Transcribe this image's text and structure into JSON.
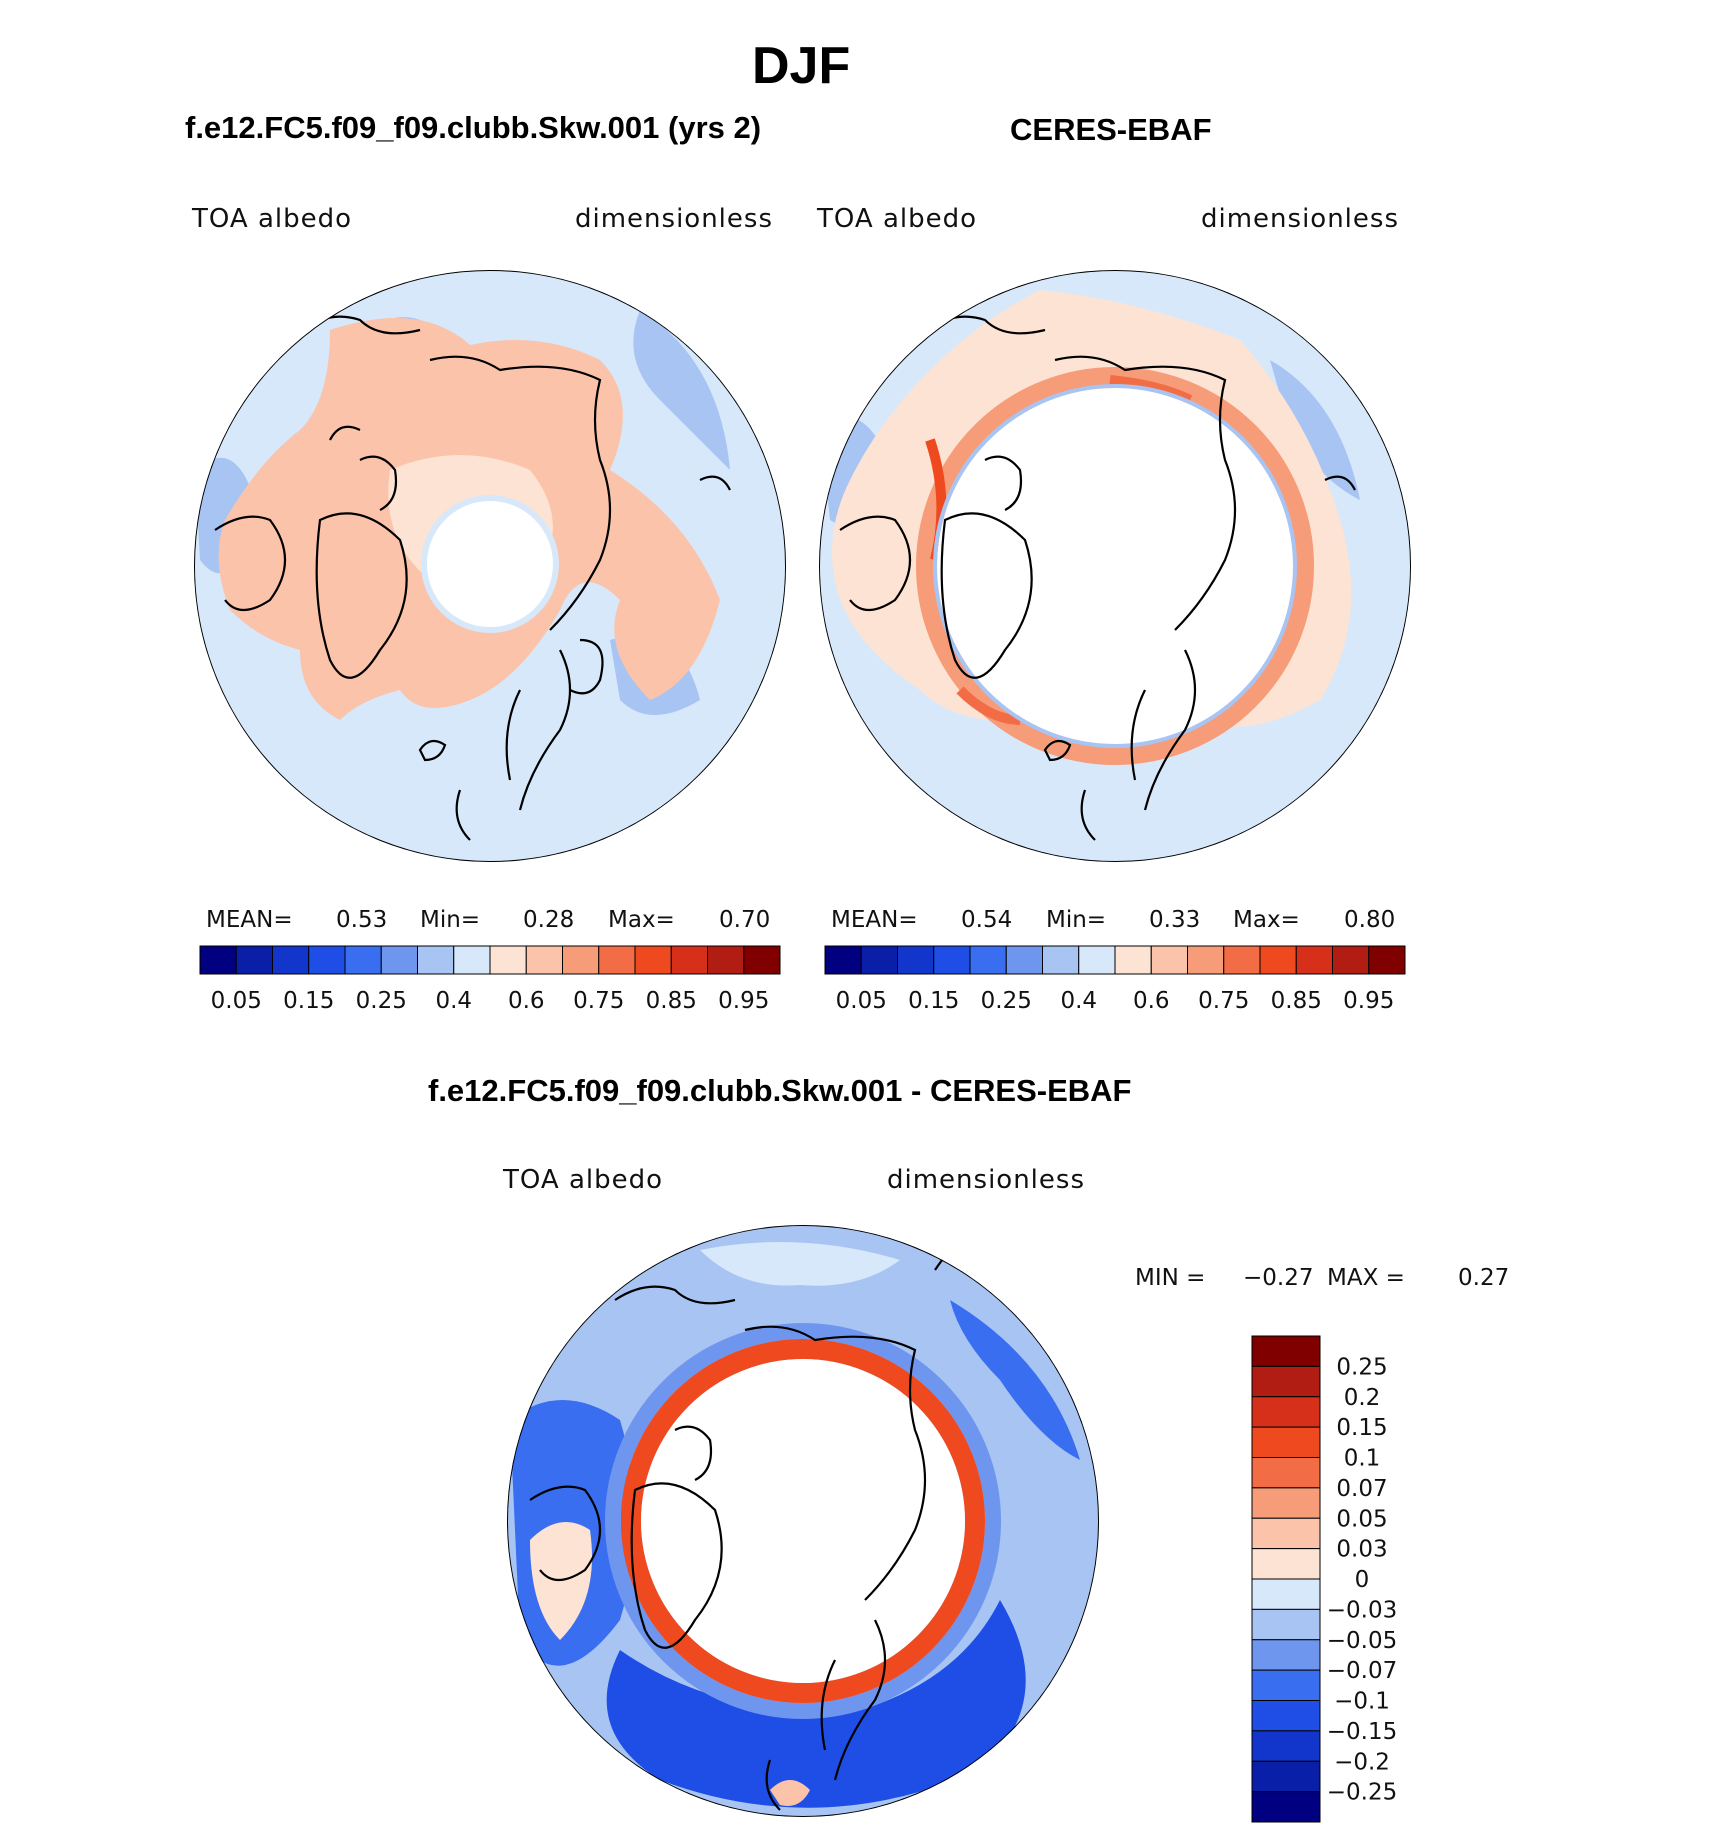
{
  "figure": {
    "season": "DJF",
    "panels": [
      {
        "title": "f.e12.FC5.f09_f09.clubb.Skw.001 (yrs 2)",
        "variable": "TOA albedo",
        "units": "dimensionless",
        "stats": {
          "mean_label": "MEAN=",
          "mean": "0.53",
          "min_label": "Min=",
          "min": "0.28",
          "max_label": "Max=",
          "max": "0.70"
        }
      },
      {
        "title": "CERES-EBAF",
        "variable": "TOA albedo",
        "units": "dimensionless",
        "stats": {
          "mean_label": "MEAN=",
          "mean": "0.54",
          "min_label": "Min=",
          "min": "0.33",
          "max_label": "Max=",
          "max": "0.80"
        }
      }
    ],
    "diff": {
      "title": "f.e12.FC5.f09_f09.clubb.Skw.001 - CERES-EBAF",
      "variable": "TOA albedo",
      "units": "dimensionless",
      "min_label": "MIN =",
      "min": "−0.27",
      "max_label": "MAX =",
      "max": "0.27"
    }
  },
  "colorbars": {
    "field": {
      "colors": [
        "#000080",
        "#0a1fa8",
        "#1236cc",
        "#1f4ee6",
        "#3a6ef0",
        "#6f96ef",
        "#a8c4f2",
        "#d7e8fb",
        "#fde3d3",
        "#fbc3a9",
        "#f79c78",
        "#f26d45",
        "#ef4a1f",
        "#d7301a",
        "#b11d12",
        "#800000"
      ],
      "labels": [
        "0.05",
        "0.15",
        "0.25",
        "0.4",
        "0.6",
        "0.75",
        "0.85",
        "0.95"
      ]
    },
    "diff": {
      "colors": [
        "#800000",
        "#b11d12",
        "#d7301a",
        "#ef4a1f",
        "#f26d45",
        "#f79c78",
        "#fbc3a9",
        "#fde3d3",
        "#d7e8fb",
        "#a8c4f2",
        "#6f96ef",
        "#3a6ef0",
        "#1f4ee6",
        "#1236cc",
        "#0a1fa8",
        "#000080"
      ],
      "labels": [
        "0.25",
        "0.2",
        "0.15",
        "0.1",
        "0.07",
        "0.05",
        "0.03",
        "0",
        "−0.03",
        "−0.05",
        "−0.07",
        "−0.1",
        "−0.15",
        "−0.2",
        "−0.25"
      ]
    }
  },
  "colors": {
    "light_blue": "#d7e8fb",
    "peach": "#fde3d3",
    "salmon": "#fbc3a9",
    "mid_blue": "#6f96ef",
    "strong_blue": "#1f4ee6",
    "orange_red": "#ef4a1f"
  }
}
